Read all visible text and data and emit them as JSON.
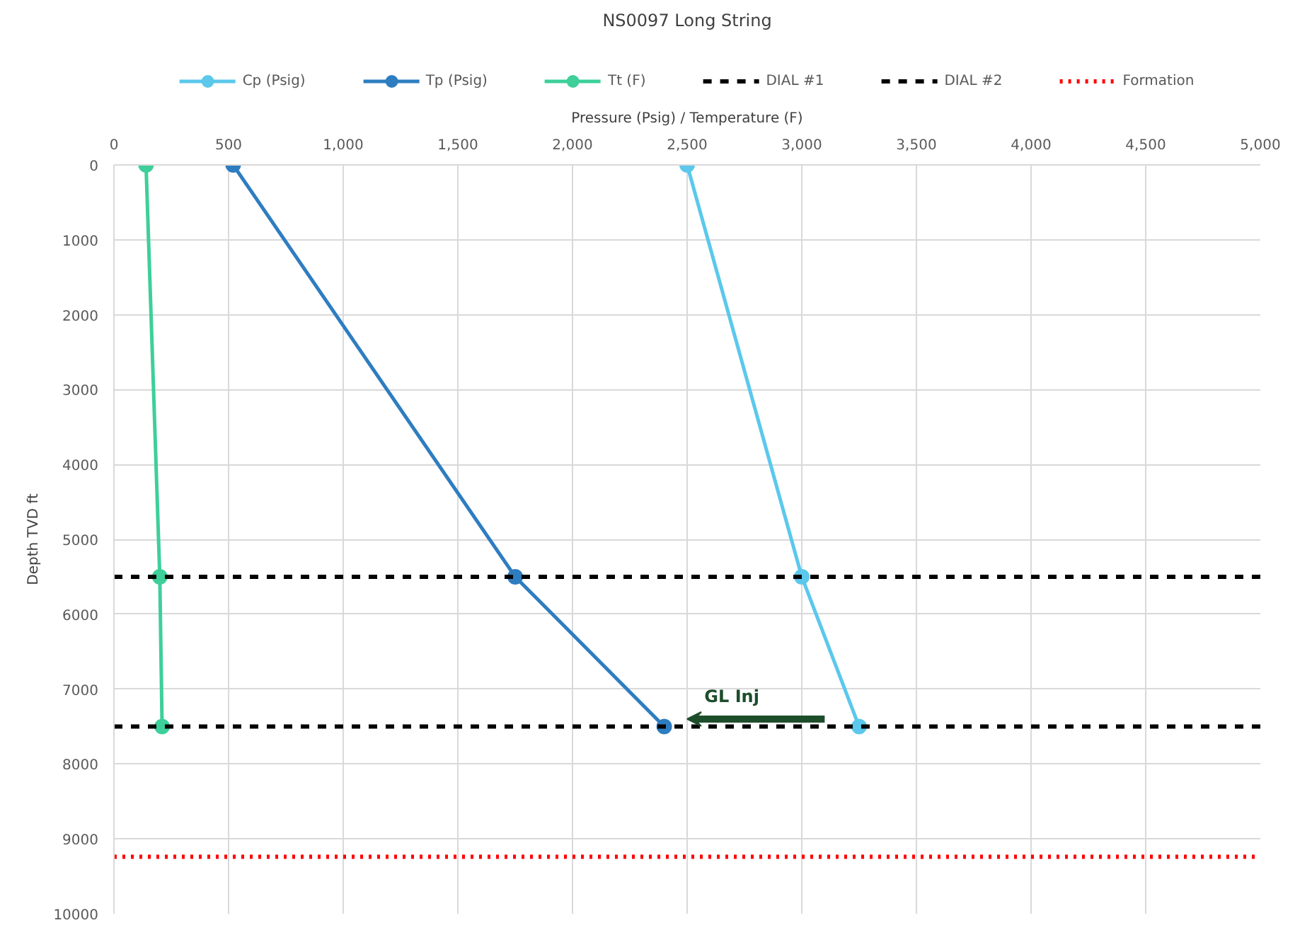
{
  "chart_data": {
    "type": "line",
    "title": "NS0097 Long String",
    "xlabel": "Pressure (Psig) / Temperature (F)",
    "ylabel": "Depth TVD ft",
    "series": [
      {
        "name": "Cp (Psig)",
        "color": "#5bc8ec",
        "x": [
          2500,
          3000,
          3250
        ],
        "values": [
          0,
          5500,
          7500
        ]
      },
      {
        "name": "Tp (Psig)",
        "color": "#2e7dc0",
        "x": [
          520,
          1750,
          2400
        ],
        "values": [
          0,
          5500,
          7500
        ]
      },
      {
        "name": "Tt (F)",
        "color": "#3ecf9a",
        "x": [
          140,
          200,
          210
        ],
        "values": [
          0,
          5500,
          7500
        ]
      }
    ],
    "ref_lines": [
      {
        "axis": "y",
        "value": 5500,
        "label": "DIAL #1",
        "color": "#000000",
        "line_style": "dashed"
      },
      {
        "axis": "y",
        "value": 7500,
        "label": "DIAL #2",
        "color": "#000000",
        "line_style": "dashed"
      },
      {
        "axis": "y",
        "value": 9240,
        "label": "Formation",
        "color": "#ff0000",
        "line_style": "dotted"
      }
    ],
    "annotations": [
      {
        "text": "GL Inj",
        "x": 2400,
        "y": 7500
      }
    ],
    "xlim": [
      0,
      5000
    ],
    "ylim": [
      10000,
      0
    ],
    "xticks": [
      0,
      500,
      {
        "value": 1000,
        "label": "1,000"
      },
      {
        "value": 1500,
        "label": "1,500"
      },
      {
        "value": 2000,
        "label": "2,000"
      },
      {
        "value": 2500,
        "label": "2,500"
      },
      {
        "value": 3000,
        "label": "3,000"
      },
      {
        "value": 3500,
        "label": "3,500"
      },
      {
        "value": 4000,
        "label": "4,000"
      },
      {
        "value": 4500,
        "label": "4,500"
      },
      {
        "value": 5000,
        "label": "5,000"
      }
    ],
    "yticks": [
      0,
      1000,
      2000,
      3000,
      4000,
      5000,
      6000,
      7000,
      8000,
      9000,
      10000
    ],
    "grid": true,
    "legend": "top",
    "marker": "circle",
    "line_style": "solid"
  }
}
